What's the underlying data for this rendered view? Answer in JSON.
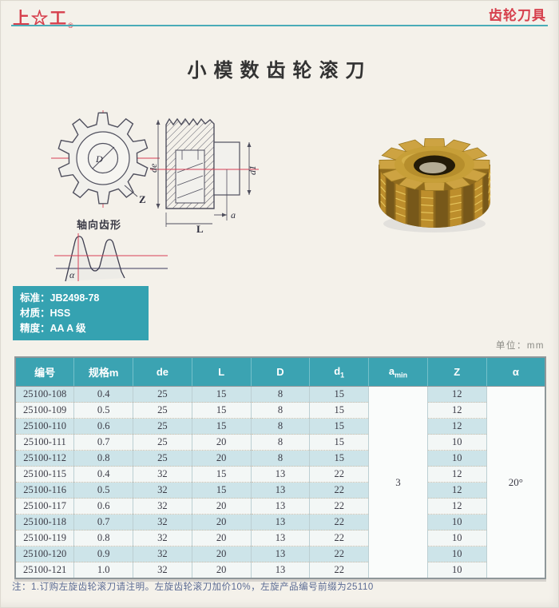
{
  "colors": {
    "teal": "#35a2b1",
    "red": "#d6404d",
    "stripe": "#cde4e9",
    "gold": "#c79f38"
  },
  "header": {
    "logo": "上☆工",
    "logo_reg": "®",
    "category": "齿轮刀具"
  },
  "title": "小模数齿轮滚刀",
  "diagram": {
    "front": {
      "D": "D",
      "Z": "Z"
    },
    "section": {
      "de": "de",
      "d1": "d1",
      "L": "L",
      "a": "a"
    },
    "axial_label": "轴向齿形",
    "alpha": "α"
  },
  "specs": {
    "rows": [
      {
        "label": "标准：",
        "value": "JB2498-78"
      },
      {
        "label": "材质：",
        "value": "HSS"
      },
      {
        "label": "精度：",
        "value": "AA A 级"
      }
    ]
  },
  "unit": {
    "label": "单位：",
    "value": "mm"
  },
  "table": {
    "columns": [
      {
        "t": "编号"
      },
      {
        "t": "规格m"
      },
      {
        "t": "de"
      },
      {
        "t": "L"
      },
      {
        "t": "D"
      },
      {
        "t": "d",
        "sub": "1"
      },
      {
        "t": "a",
        "sub": "min"
      },
      {
        "t": "Z"
      },
      {
        "t": "α"
      }
    ],
    "rows": [
      {
        "code": "25100-108",
        "m": "0.4",
        "de": "25",
        "L": "15",
        "D": "8",
        "d1": "15",
        "Z": "12"
      },
      {
        "code": "25100-109",
        "m": "0.5",
        "de": "25",
        "L": "15",
        "D": "8",
        "d1": "15",
        "Z": "12"
      },
      {
        "code": "25100-110",
        "m": "0.6",
        "de": "25",
        "L": "15",
        "D": "8",
        "d1": "15",
        "Z": "12"
      },
      {
        "code": "25100-111",
        "m": "0.7",
        "de": "25",
        "L": "20",
        "D": "8",
        "d1": "15",
        "Z": "10"
      },
      {
        "code": "25100-112",
        "m": "0.8",
        "de": "25",
        "L": "20",
        "D": "8",
        "d1": "15",
        "Z": "10"
      },
      {
        "code": "25100-115",
        "m": "0.4",
        "de": "32",
        "L": "15",
        "D": "13",
        "d1": "22",
        "Z": "12"
      },
      {
        "code": "25100-116",
        "m": "0.5",
        "de": "32",
        "L": "15",
        "D": "13",
        "d1": "22",
        "Z": "12"
      },
      {
        "code": "25100-117",
        "m": "0.6",
        "de": "32",
        "L": "20",
        "D": "13",
        "d1": "22",
        "Z": "12"
      },
      {
        "code": "25100-118",
        "m": "0.7",
        "de": "32",
        "L": "20",
        "D": "13",
        "d1": "22",
        "Z": "10"
      },
      {
        "code": "25100-119",
        "m": "0.8",
        "de": "32",
        "L": "20",
        "D": "13",
        "d1": "22",
        "Z": "10"
      },
      {
        "code": "25100-120",
        "m": "0.9",
        "de": "32",
        "L": "20",
        "D": "13",
        "d1": "22",
        "Z": "10"
      },
      {
        "code": "25100-121",
        "m": "1.0",
        "de": "32",
        "L": "20",
        "D": "13",
        "d1": "22",
        "Z": "10"
      }
    ],
    "merged": {
      "amin": "3",
      "alpha": "20°"
    }
  },
  "note": "注：1.订购左旋齿轮滚刀请注明。左旋齿轮滚刀加价10%，左旋产品编号前缀为25110"
}
